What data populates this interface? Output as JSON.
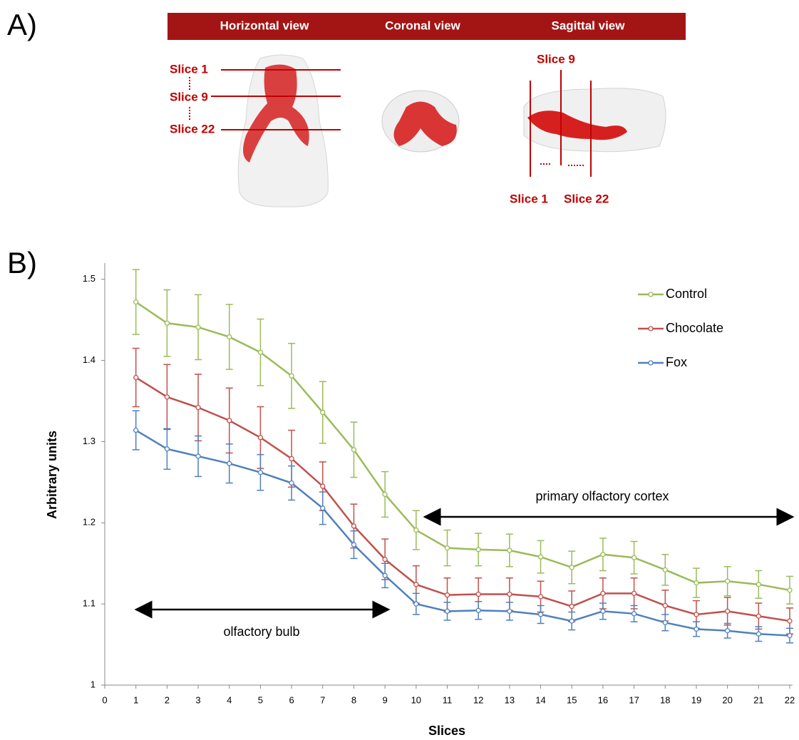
{
  "panel_a": {
    "label": "A)",
    "views": [
      "Horizontal view",
      "Coronal view",
      "Sagittal view"
    ],
    "horizontal_slices": [
      "Slice 1",
      "Slice 9",
      "Slice 22"
    ],
    "sagittal_slices": [
      "Slice 9",
      "Slice 1",
      "Slice 22"
    ]
  },
  "panel_b_label": "B)",
  "chart_data": {
    "type": "line",
    "xlabel": "Slices",
    "ylabel": "Arbitrary units",
    "x": [
      1,
      2,
      3,
      4,
      5,
      6,
      7,
      8,
      9,
      10,
      11,
      12,
      13,
      14,
      15,
      16,
      17,
      18,
      19,
      20,
      21,
      22
    ],
    "series": [
      {
        "name": "Control",
        "color": "#9bbb59",
        "values": [
          1.472,
          1.446,
          1.441,
          1.429,
          1.41,
          1.381,
          1.336,
          1.29,
          1.235,
          1.191,
          1.169,
          1.167,
          1.166,
          1.158,
          1.145,
          1.161,
          1.157,
          1.142,
          1.126,
          1.128,
          1.124,
          1.117
        ],
        "errors": [
          0.04,
          0.041,
          0.04,
          0.04,
          0.041,
          0.04,
          0.038,
          0.034,
          0.028,
          0.024,
          0.022,
          0.02,
          0.02,
          0.02,
          0.02,
          0.02,
          0.02,
          0.019,
          0.018,
          0.018,
          0.017,
          0.017
        ]
      },
      {
        "name": "Chocolate",
        "color": "#c0504d",
        "values": [
          1.379,
          1.355,
          1.342,
          1.326,
          1.305,
          1.279,
          1.245,
          1.196,
          1.155,
          1.124,
          1.111,
          1.112,
          1.112,
          1.109,
          1.097,
          1.113,
          1.113,
          1.098,
          1.087,
          1.091,
          1.085,
          1.079
        ],
        "errors": [
          0.036,
          0.04,
          0.041,
          0.04,
          0.038,
          0.035,
          0.03,
          0.027,
          0.025,
          0.023,
          0.021,
          0.02,
          0.02,
          0.019,
          0.019,
          0.019,
          0.019,
          0.019,
          0.017,
          0.017,
          0.016,
          0.016
        ]
      },
      {
        "name": "Fox",
        "color": "#4f81bd",
        "values": [
          1.314,
          1.291,
          1.282,
          1.273,
          1.262,
          1.249,
          1.218,
          1.173,
          1.135,
          1.1,
          1.091,
          1.092,
          1.091,
          1.087,
          1.079,
          1.091,
          1.088,
          1.077,
          1.069,
          1.067,
          1.063,
          1.061
        ],
        "errors": [
          0.024,
          0.025,
          0.025,
          0.024,
          0.022,
          0.021,
          0.02,
          0.017,
          0.015,
          0.013,
          0.011,
          0.011,
          0.011,
          0.011,
          0.011,
          0.01,
          0.01,
          0.01,
          0.009,
          0.009,
          0.009,
          0.009
        ]
      }
    ],
    "xlim": [
      0,
      22
    ],
    "xticks": [
      0,
      1,
      2,
      3,
      4,
      5,
      6,
      7,
      8,
      9,
      10,
      11,
      12,
      13,
      14,
      15,
      16,
      17,
      18,
      19,
      20,
      21,
      22
    ],
    "ylim": [
      1,
      1.52
    ],
    "yticks": [
      1,
      1.1,
      1.2,
      1.3,
      1.4,
      1.5
    ],
    "legend_loc": "upper right",
    "annotations": [
      "olfactory bulb",
      "primary olfactory cortex"
    ]
  }
}
